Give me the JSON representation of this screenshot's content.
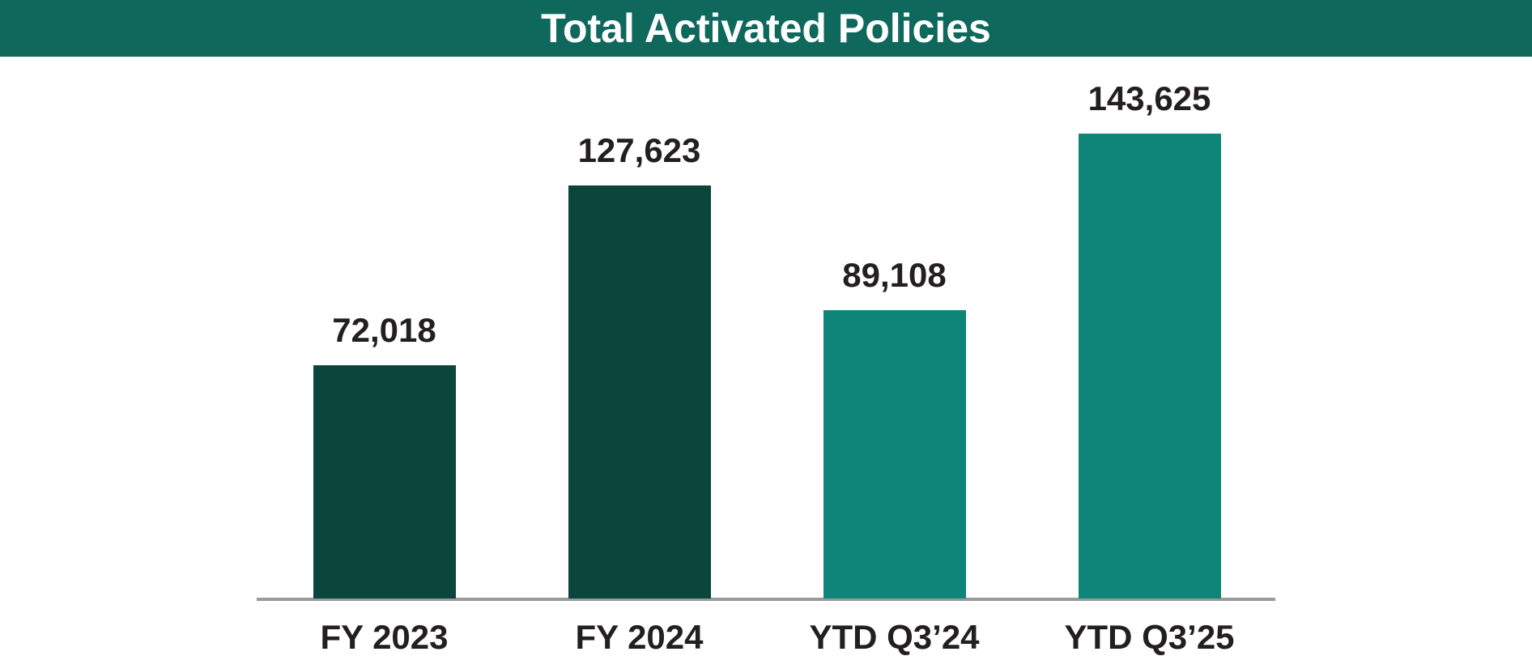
{
  "header": {
    "title": "Total Activated Policies",
    "bg_color": "#0F685C",
    "text_color": "#FFFFFF"
  },
  "chart_data": {
    "type": "bar",
    "title": "Total Activated Policies",
    "categories": [
      "FY 2023",
      "FY 2024",
      "YTD Q3’24",
      "YTD Q3’25"
    ],
    "values": [
      72018,
      127623,
      89108,
      143625
    ],
    "value_labels": [
      "72,018",
      "127,623",
      "89,108",
      "143,625"
    ],
    "bar_colors": [
      "#0A463C",
      "#0A463C",
      "#0E8578",
      "#0E8578"
    ],
    "xlabel": "",
    "ylabel": "",
    "ylim": [
      0,
      150000
    ],
    "grid": false,
    "legend": "none",
    "axis_line_color": "#9A9A9A",
    "label_color": "#231F20"
  }
}
